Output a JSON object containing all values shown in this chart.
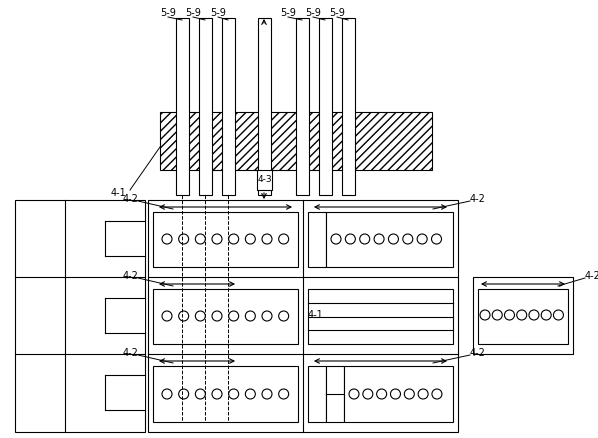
{
  "bg_color": "#ffffff",
  "line_color": "#000000",
  "fig_width": 5.98,
  "fig_height": 4.38,
  "dpi": 100
}
